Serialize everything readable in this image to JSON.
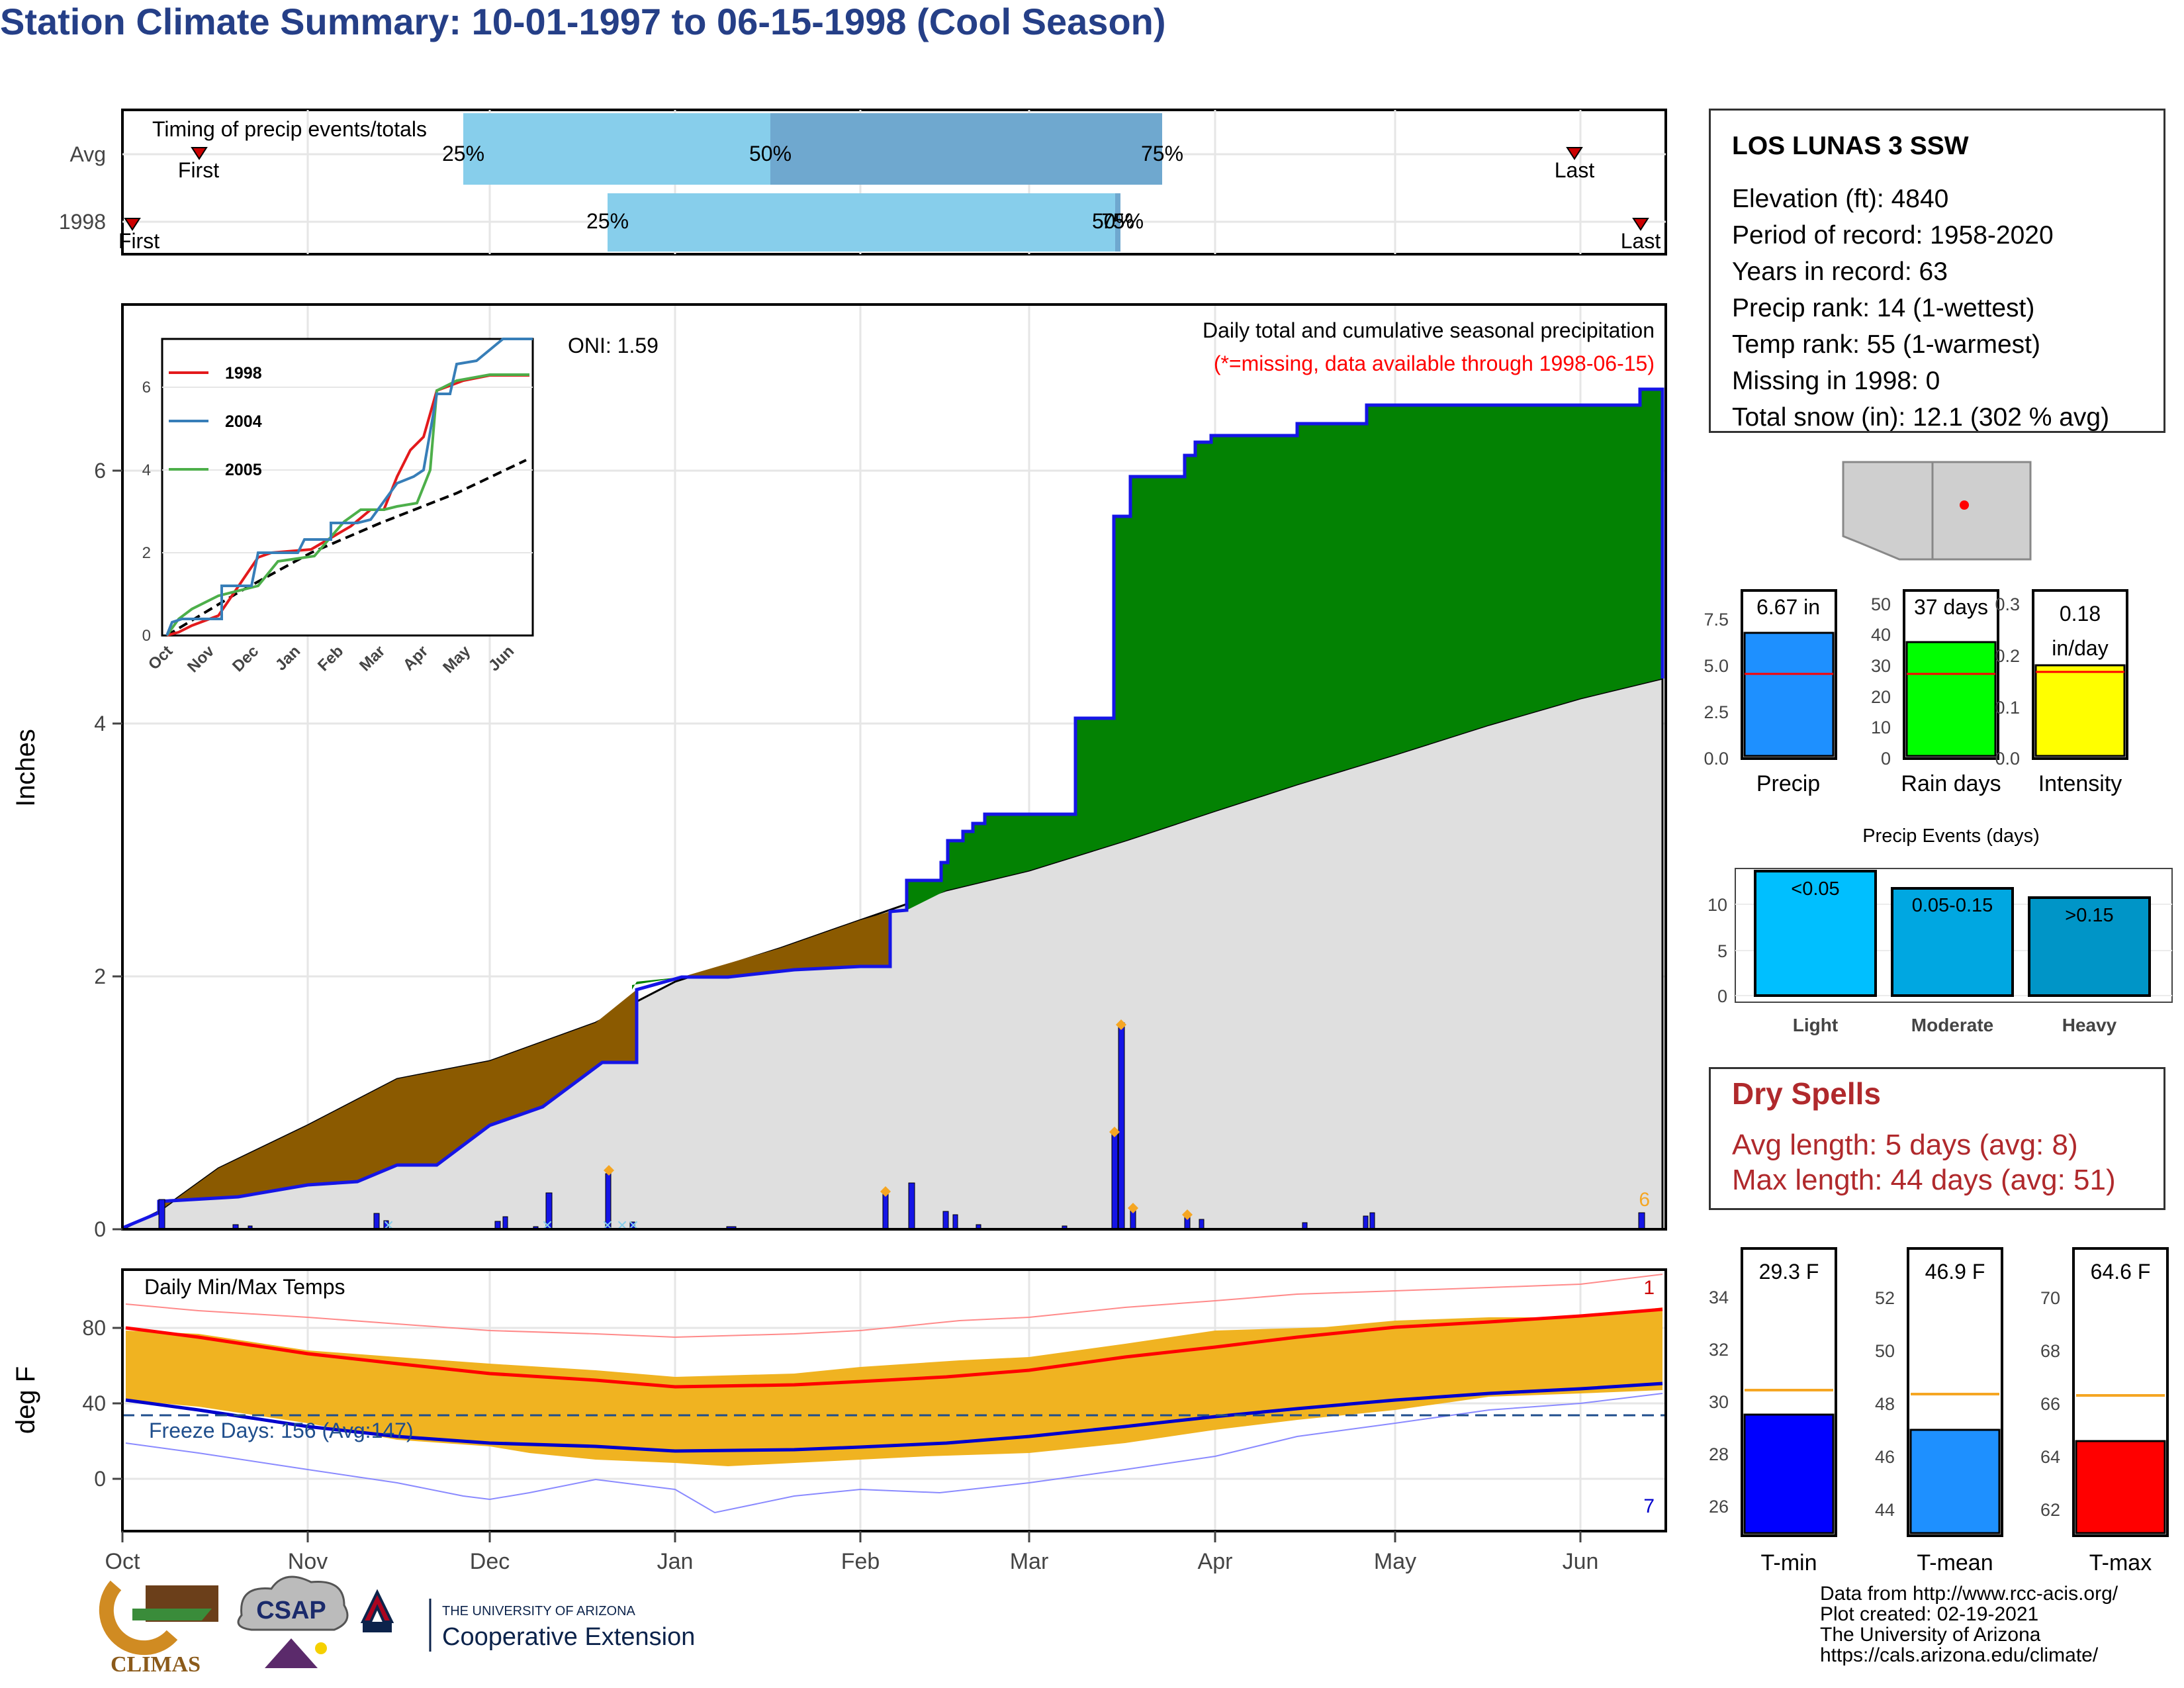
{
  "title": "Station Climate Summary: 10-01-1997 to 06-15-1998 (Cool Season)",
  "colors": {
    "title": "#253f87",
    "obs_line": "#1515e6",
    "surplus": "#038203",
    "deficit": "#8b5a00",
    "avg_fill": "#dfdfdf",
    "bar_light": "#87ceeb",
    "bar_dark": "#6fa8cf",
    "temp_bar": "#f0b321",
    "tmax_avg": "#ff0000",
    "tmin_avg": "#0000cc",
    "dry": "#b0292c"
  },
  "timing_panel": {
    "label": "Timing of precip events/totals",
    "rows": [
      "Avg",
      "1998"
    ],
    "avg": {
      "first": "First",
      "last": "Last",
      "p25": "25%",
      "p50": "50%",
      "p75": "75%"
    },
    "y1998": {
      "first": "First",
      "last": "Last",
      "p25": "25%",
      "p50": "50%",
      "p75": "75%"
    }
  },
  "precip_panel": {
    "ylabel": "Inches",
    "yticks": [
      "0",
      "2",
      "4",
      "6"
    ],
    "oni": "ONI: 1.59",
    "heading": "Daily total and cumulative seasonal precipitation",
    "missing_note": "(*=missing, data available through 1998-06-15)",
    "corner_count": "6"
  },
  "inset": {
    "yticks": [
      "0",
      "2",
      "4",
      "6"
    ],
    "xticks": [
      "Oct",
      "Nov",
      "Dec",
      "Jan",
      "Feb",
      "Mar",
      "Apr",
      "May",
      "Jun"
    ],
    "legend": [
      "1998",
      "2004",
      "2005"
    ]
  },
  "temp_panel": {
    "ylabel": "deg F",
    "label": "Daily Min/Max Temps",
    "yticks": [
      "0",
      "40",
      "80"
    ],
    "freeze": "Freeze Days: 156 (Avg:147)",
    "count_top": "1",
    "count_bottom": "7"
  },
  "months": [
    "Oct",
    "Nov",
    "Dec",
    "Jan",
    "Feb",
    "Mar",
    "Apr",
    "May",
    "Jun"
  ],
  "station": {
    "name": "LOS LUNAS 3 SSW",
    "elevation": "Elevation (ft): 4840",
    "period": "Period of record: 1958-2020",
    "years": "Years in record: 63",
    "precip_rank": "Precip rank: 14 (1-wettest)",
    "temp_rank": "Temp rank: 55 (1-warmest)",
    "missing": "Missing in 1998: 0",
    "snow": "Total snow (in): 12.1 (302 % avg)"
  },
  "mini_bars": [
    {
      "label": "Precip",
      "value_text": "6.67 in",
      "yticks": [
        "0.0",
        "2.5",
        "5.0",
        "7.5"
      ]
    },
    {
      "label": "Rain days",
      "value_text": "37 days",
      "yticks": [
        "0",
        "10",
        "20",
        "30",
        "40",
        "50"
      ]
    },
    {
      "label": "Intensity",
      "value_text": "0.18",
      "value_text2": "in/day",
      "yticks": [
        "0.0",
        "0.1",
        "0.2",
        "0.3"
      ]
    }
  ],
  "events_panel": {
    "title": "Precip Events (days)",
    "yticks": [
      "0",
      "5",
      "10"
    ],
    "bars": [
      {
        "label": "Light",
        "range": "<0.05"
      },
      {
        "label": "Moderate",
        "range": "0.05-0.15"
      },
      {
        "label": "Heavy",
        "range": ">0.15"
      }
    ]
  },
  "dry_spells": {
    "title": "Dry Spells",
    "avg": "Avg length: 5 days (avg: 8)",
    "max": "Max length: 44 days (avg: 51)"
  },
  "temp_bars": [
    {
      "label": "T-min",
      "value_text": "29.3 F",
      "yticks": [
        "26",
        "28",
        "30",
        "32",
        "34"
      ]
    },
    {
      "label": "T-mean",
      "value_text": "46.9 F",
      "yticks": [
        "44",
        "46",
        "48",
        "50",
        "52"
      ]
    },
    {
      "label": "T-max",
      "value_text": "64.6 F",
      "yticks": [
        "62",
        "64",
        "66",
        "68",
        "70"
      ]
    }
  ],
  "credits": {
    "line1": "Data from http://www.rcc-acis.org/",
    "line2": "Plot created: 02-19-2021",
    "line3": "The University of Arizona",
    "line4": "https://cals.arizona.edu/climate/"
  },
  "logos": {
    "climas": "CLIMAS",
    "csap": "CSAP",
    "ua_small": "THE UNIVERSITY OF ARIZONA",
    "ua_big": "Cooperative Extension"
  },
  "chart_data": {
    "type": "area",
    "x_start": "1997-10-01",
    "x_end": "1998-06-15",
    "xticks": [
      "Oct",
      "Nov",
      "Dec",
      "Jan",
      "Feb",
      "Mar",
      "Apr",
      "May",
      "Jun"
    ],
    "ylim": [
      0,
      7.3
    ],
    "observed_cumulative_inches": [
      {
        "date": "1997-10-01",
        "value": 0.0
      },
      {
        "date": "1997-10-07",
        "value": 0.2
      },
      {
        "date": "1997-10-20",
        "value": 0.22
      },
      {
        "date": "1997-10-27",
        "value": 0.26
      },
      {
        "date": "1997-11-23",
        "value": 0.3
      },
      {
        "date": "1997-11-27",
        "value": 0.6
      },
      {
        "date": "1997-11-30",
        "value": 0.72
      },
      {
        "date": "1997-12-25",
        "value": 0.72
      },
      {
        "date": "1997-12-26",
        "value": 0.98
      },
      {
        "date": "1998-01-06",
        "value": 1.02
      },
      {
        "date": "1998-01-13",
        "value": 1.32
      },
      {
        "date": "1998-01-22",
        "value": 1.62
      },
      {
        "date": "1998-02-03",
        "value": 1.92
      },
      {
        "date": "1998-02-06",
        "value": 1.98
      },
      {
        "date": "1998-03-15",
        "value": 2.0
      },
      {
        "date": "1998-04-15",
        "value": 2.4
      },
      {
        "date": "1998-04-30",
        "value": 2.75
      },
      {
        "date": "1998-05-06",
        "value": 3.05
      },
      {
        "date": "1998-05-14",
        "value": 3.15
      },
      {
        "date": "1998-05-29",
        "value": 3.28
      },
      {
        "date": "1998-06-01",
        "value": 4.05
      },
      {
        "date": "1998-06-01",
        "value": 5.7
      },
      {
        "date": "1998-06-03",
        "value": 5.9
      },
      {
        "date": "1998-06-14",
        "value": 6.1
      },
      {
        "date": "1998-06-15",
        "value": 6.67
      }
    ],
    "average_cumulative_inches": [
      {
        "date": "1997-10-01",
        "value": 0.0
      },
      {
        "date": "1997-11-01",
        "value": 0.8
      },
      {
        "date": "1997-12-01",
        "value": 1.3
      },
      {
        "date": "1998-01-01",
        "value": 1.85
      },
      {
        "date": "1998-02-01",
        "value": 2.25
      },
      {
        "date": "1998-03-01",
        "value": 2.75
      },
      {
        "date": "1998-04-01",
        "value": 3.2
      },
      {
        "date": "1998-05-01",
        "value": 3.6
      },
      {
        "date": "1998-06-01",
        "value": 4.15
      },
      {
        "date": "1998-06-15",
        "value": 4.35
      }
    ],
    "daily_precip_inches": [
      {
        "date": "1997-10-07",
        "value": 0.2
      },
      {
        "date": "1997-12-26",
        "value": 0.45
      },
      {
        "date": "1998-02-06",
        "value": 0.3
      },
      {
        "date": "1998-03-01",
        "value": 0.35
      },
      {
        "date": "1998-03-15",
        "value": 0.78
      },
      {
        "date": "1998-03-16",
        "value": 1.65
      },
      {
        "date": "1998-03-22",
        "value": 0.18
      },
      {
        "date": "1998-04-14",
        "value": 0.15
      },
      {
        "date": "1998-06-14",
        "value": 0.1
      }
    ],
    "temps": {
      "ylabel": "deg F",
      "tmax_avg_start": 80,
      "tmax_avg_mid": 52,
      "tmax_avg_end": 90,
      "tmin_avg_start": 43,
      "tmin_avg_mid": 19,
      "tmin_avg_end": 53,
      "freeze_threshold": 32
    },
    "summary_bars": {
      "precip_in": 6.67,
      "precip_avg_in": 4.5,
      "rain_days": 37,
      "rain_days_avg": 27,
      "intensity": 0.18,
      "intensity_avg": 0.17,
      "events_light": 14,
      "events_moderate": 12,
      "events_heavy": 11,
      "tmin": 29.3,
      "tmin_avg": 30.2,
      "tmean": 46.9,
      "tmean_avg": 48.3,
      "tmax": 64.6,
      "tmax_avg": 66.4
    }
  }
}
